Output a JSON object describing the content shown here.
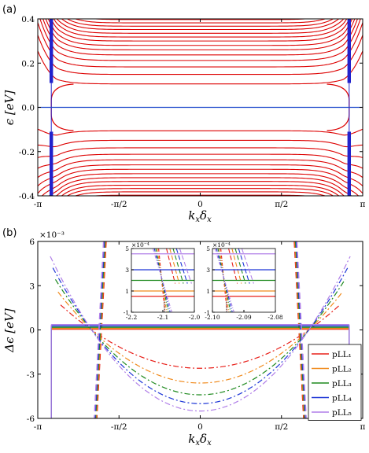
{
  "chart_data": [
    {
      "panel": "(a)",
      "type": "line",
      "xlabel": "k_x δ_x",
      "ylabel": "ϵ [eV]",
      "xlim": [
        -3.14159,
        3.14159
      ],
      "ylim": [
        -0.4,
        0.4
      ],
      "xticks": [
        {
          "value": -3.14159,
          "label": "-π"
        },
        {
          "value": -1.5708,
          "label": "-π/2"
        },
        {
          "value": 0,
          "label": "0"
        },
        {
          "value": 1.5708,
          "label": "π/2"
        },
        {
          "value": 3.14159,
          "label": "π"
        }
      ],
      "yticks": [
        {
          "value": -0.4,
          "label": "-0.4"
        },
        {
          "value": -0.2,
          "label": "-0.2"
        },
        {
          "value": 0,
          "label": "0.0"
        },
        {
          "value": 0.2,
          "label": "0.2"
        },
        {
          "value": 0.4,
          "label": "0.4"
        }
      ],
      "flat_band_energies_eV": [
        0.106,
        0.149,
        0.183,
        0.212,
        0.237,
        0.26,
        0.28,
        0.3,
        0.318,
        0.335,
        0.352,
        0.367,
        0.382,
        0.397
      ],
      "edge_kx": 2.88,
      "zero_mode_eV": 0,
      "colors": {
        "bands": "#dd0000",
        "edge_states": "#2222cc",
        "zero_line": "#1f49cc"
      }
    },
    {
      "panel": "(b)",
      "type": "line",
      "xlabel": "k_x δ_x",
      "ylabel": "Δϵ [eV]",
      "yscale_label": "×10⁻³",
      "xlim": [
        -3.14159,
        3.14159
      ],
      "ylim": [
        -6,
        6
      ],
      "xticks": [
        {
          "value": -3.14159,
          "label": "-π"
        },
        {
          "value": -1.5708,
          "label": "-π/2"
        },
        {
          "value": 0,
          "label": "0"
        },
        {
          "value": 1.5708,
          "label": "π/2"
        },
        {
          "value": 3.14159,
          "label": "π"
        }
      ],
      "yticks": [
        {
          "value": -6,
          "label": "-6"
        },
        {
          "value": -3,
          "label": "-3"
        },
        {
          "value": 0,
          "label": "0"
        },
        {
          "value": 3,
          "label": "3"
        },
        {
          "value": 6,
          "label": "6"
        }
      ],
      "crossing_kx": 2.1,
      "edge_kx": 2.88,
      "series": [
        {
          "name": "pLL₁",
          "color": "#e8201a",
          "flat": 0.05,
          "min": -2.6
        },
        {
          "name": "pLL₂",
          "color": "#f08a1c",
          "flat": 0.1,
          "min": -3.6
        },
        {
          "name": "pLL₃",
          "color": "#1f8a1f",
          "flat": 0.18,
          "min": -4.4
        },
        {
          "name": "pLL₄",
          "color": "#1d36d6",
          "flat": 0.27,
          "min": -5.0
        },
        {
          "name": "pLL₅",
          "color": "#b07fe8",
          "flat": 0.36,
          "min": -5.5
        }
      ],
      "insets": [
        {
          "yscale_label": "×10⁻⁴",
          "xlim": [
            -2.2,
            -2.0
          ],
          "ylim": [
            -1,
            5
          ],
          "xticks": [
            {
              "value": -2.2,
              "label": "-2.2"
            },
            {
              "value": -2.1,
              "label": "-2.1"
            },
            {
              "value": -2.0,
              "label": "-2.0"
            }
          ],
          "yticks": [
            {
              "value": -1,
              "label": "-1"
            },
            {
              "value": 1,
              "label": "1"
            },
            {
              "value": 3,
              "label": "3"
            },
            {
              "value": 5,
              "label": "5"
            }
          ],
          "crossing_x": -2.095,
          "flat_levels": [
            0.5,
            1.0,
            2.0,
            3.0,
            4.5
          ]
        },
        {
          "yscale_label": "×10⁻⁴",
          "xlim": [
            -2.1,
            -2.08
          ],
          "ylim": [
            -1,
            5
          ],
          "xticks": [
            {
              "value": -2.1,
              "label": "-2.10"
            },
            {
              "value": -2.09,
              "label": "-2.09"
            },
            {
              "value": -2.08,
              "label": "-2.08"
            }
          ],
          "yticks": [
            {
              "value": -1,
              "label": "-1"
            },
            {
              "value": 1,
              "label": "1"
            },
            {
              "value": 3,
              "label": "3"
            },
            {
              "value": 5,
              "label": "5"
            }
          ],
          "crossing_x": -2.0955,
          "flat_levels": [
            0.5,
            1.0,
            2.0,
            3.0,
            4.5
          ]
        }
      ]
    }
  ]
}
